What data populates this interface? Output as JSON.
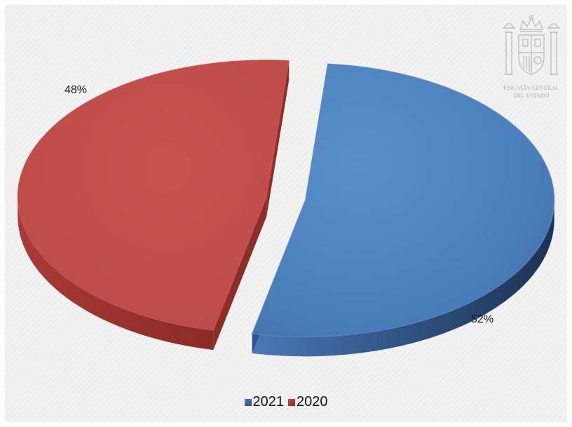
{
  "chart_data": {
    "type": "pie",
    "categories": [
      "2021",
      "2020"
    ],
    "values": [
      52,
      48
    ],
    "unit": "%",
    "data_labels": [
      "52%",
      "48%"
    ],
    "colors": [
      "#4a7ebb",
      "#be4b48"
    ],
    "legend_position": "bottom",
    "exploded": true,
    "style": "3d"
  },
  "emblem": {
    "name": "coat-of-arms-icon",
    "line1": "FISCALÍA GENERAL",
    "line2": "DEL ESTADO"
  }
}
